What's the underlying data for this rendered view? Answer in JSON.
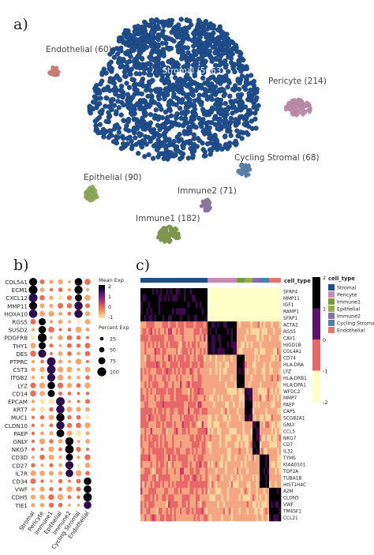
{
  "panel_labels": {
    "a": "a)",
    "b": "b)",
    "c": "c)"
  },
  "chart_data": [
    {
      "type": "scatter",
      "panel": "a",
      "clusters": [
        {
          "name": "Stromal",
          "count": 5663,
          "label": "Stromal (5663)",
          "color": "#1f4e8c"
        },
        {
          "name": "Endothelial",
          "count": 60,
          "label": "Endothelial (60)",
          "color": "#e07868"
        },
        {
          "name": "Pericyte",
          "count": 214,
          "label": "Pericyte (214)",
          "color": "#c88ab0"
        },
        {
          "name": "Cycling Stromal",
          "count": 68,
          "label": "Cycling Stromal (68)",
          "color": "#4f7fb0"
        },
        {
          "name": "Epithelial",
          "count": 90,
          "label": "Epithelial (90)",
          "color": "#8db04a"
        },
        {
          "name": "Immune2",
          "count": 71,
          "label": "Immune2 (71)",
          "color": "#8a6ea8"
        },
        {
          "name": "Immune1",
          "count": 182,
          "label": "Immune1 (182)",
          "color": "#7a9a3a"
        }
      ]
    },
    {
      "type": "dotplot",
      "panel": "b",
      "cell_types": [
        "Stromal",
        "Pericyte",
        "Immune1",
        "Epithelial",
        "Immune2",
        "Cycling Stromal",
        "Endothelial"
      ],
      "genes": [
        "COL5A1",
        "ECM1",
        "CXCL12",
        "MMP11",
        "HOXA10",
        "RGS5",
        "SUSD2",
        "PDGFRB",
        "THY1",
        "DES",
        "PTPRC",
        "CST3",
        "ITGB2",
        "LYZ",
        "CD14",
        "EPCAM",
        "KRT7",
        "MUC1",
        "CLDN10",
        "PAEP",
        "GNLY",
        "NKG7",
        "CD3D",
        "CD27",
        "IL7R",
        "CD34",
        "VWF",
        "CDH5",
        "TIE1"
      ],
      "legend_mean_title": "Mean Exp",
      "legend_mean_ticks": [
        "2",
        "1",
        "0",
        "-1"
      ],
      "legend_pct_title": "Percent Exp",
      "legend_pct_ticks": [
        "25",
        "50",
        "75",
        "100"
      ],
      "marker_groups": [
        [
          0,
          4,
          0
        ],
        [
          5,
          9,
          1
        ],
        [
          10,
          14,
          2
        ],
        [
          15,
          19,
          3
        ],
        [
          20,
          24,
          4
        ],
        [
          25,
          28,
          6
        ]
      ]
    },
    {
      "type": "heatmap",
      "panel": "c",
      "annotation_title": "cell_type",
      "annotation_counts": [
        5663,
        214,
        182,
        90,
        71,
        68,
        60
      ],
      "genes": [
        "SFRP4",
        "MMP11",
        "IGF1",
        "RAMP1",
        "SFRP1",
        "ACTA2",
        "RGS5",
        "CAV1",
        "HIGD1B",
        "COL4A1",
        "CD74",
        "HLA-DRA",
        "LYZ",
        "HLA-DRB1",
        "HLA-DPA1",
        "WFDC2",
        "MMP7",
        "PAEP",
        "CAPS",
        "SCGB2A1",
        "GNLY",
        "CCL5",
        "NKG7",
        "CD7",
        "IL32",
        "TYMS",
        "KIAA0101",
        "TOP2A",
        "TUBA1B",
        "HIST1H4C",
        "A2M",
        "CLDN5",
        "VWF",
        "TM4SF1",
        "CCL21"
      ],
      "colorbar_ticks": [
        "2",
        "1",
        "0",
        "-1",
        "-2"
      ],
      "legend_title": "cell_type",
      "legend_entries": [
        {
          "name": "Stromal",
          "color": "#1f4e8c"
        },
        {
          "name": "Pericyte",
          "color": "#c88ab0"
        },
        {
          "name": "Immune1",
          "color": "#7a9a3a"
        },
        {
          "name": "Epithelial",
          "color": "#8db04a"
        },
        {
          "name": "Immune2",
          "color": "#8a6ea8"
        },
        {
          "name": "Cycling Stromal",
          "color": "#4f7fb0"
        },
        {
          "name": "Endothelial",
          "color": "#e07868"
        }
      ]
    }
  ]
}
